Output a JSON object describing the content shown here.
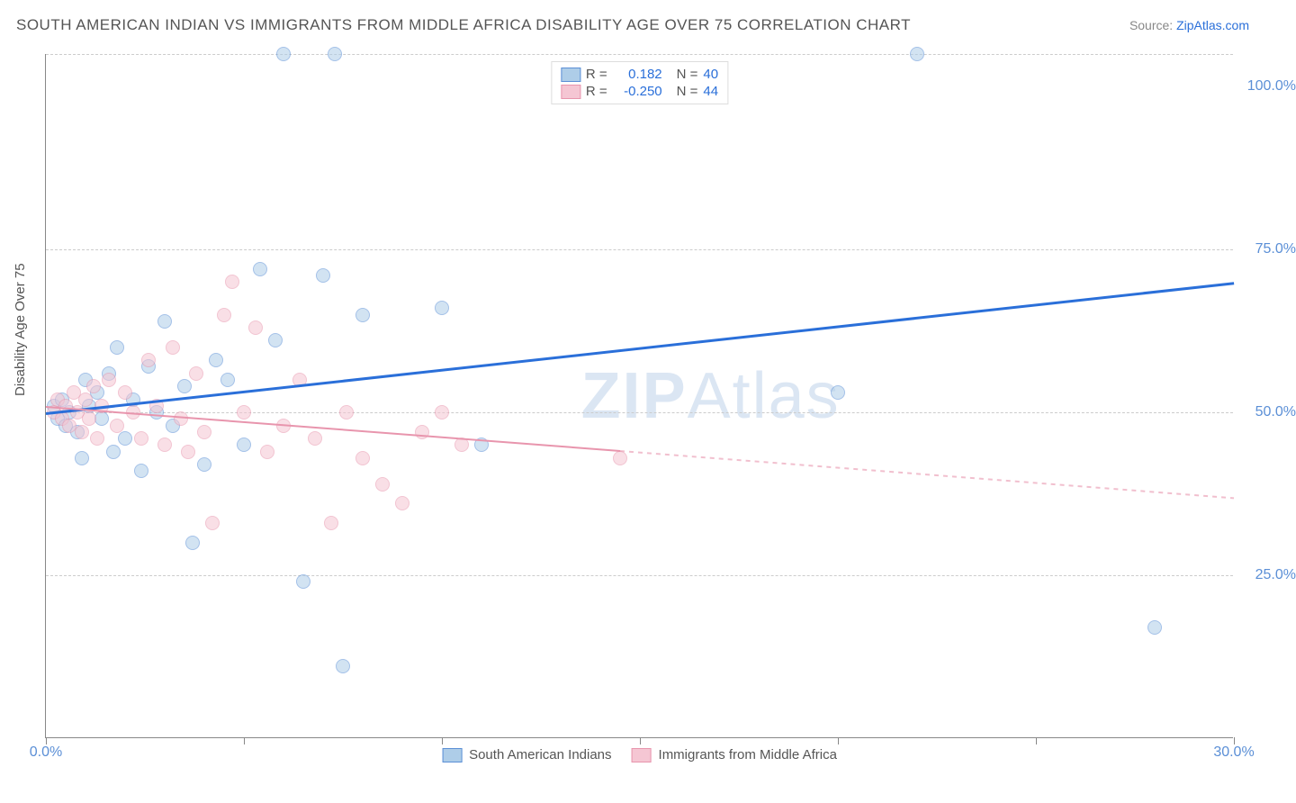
{
  "title": "SOUTH AMERICAN INDIAN VS IMMIGRANTS FROM MIDDLE AFRICA DISABILITY AGE OVER 75 CORRELATION CHART",
  "source_label": "Source:",
  "source_link": "ZipAtlas.com",
  "ylabel": "Disability Age Over 75",
  "watermark": "ZIPAtlas",
  "chart": {
    "type": "scatter",
    "xlim": [
      0,
      30
    ],
    "ylim": [
      0,
      105
    ],
    "x_ticks": [
      0,
      5,
      10,
      15,
      20,
      25,
      30
    ],
    "x_tick_labels": {
      "0": "0.0%",
      "30": "30.0%"
    },
    "y_gridlines": [
      25,
      50,
      75,
      105
    ],
    "y_tick_labels": {
      "25": "25.0%",
      "50": "50.0%",
      "75": "75.0%",
      "100": "100.0%"
    },
    "background_color": "#ffffff",
    "grid_color": "#cccccc",
    "axis_color": "#888888",
    "label_color": "#5b8fd6",
    "text_color": "#555555",
    "point_radius": 8,
    "point_opacity": 0.55,
    "series": [
      {
        "name": "South American Indians",
        "fill": "#aecde8",
        "stroke": "#5b8fd6",
        "r_value": "0.182",
        "n_value": "40",
        "trend": {
          "x1": 0,
          "y1": 50,
          "x2": 30,
          "y2": 70,
          "width": 3,
          "color": "#2a6fd9",
          "solid_until_x": 30
        },
        "points": [
          [
            0.2,
            51
          ],
          [
            0.3,
            49
          ],
          [
            0.4,
            52
          ],
          [
            0.5,
            48
          ],
          [
            0.6,
            50
          ],
          [
            0.8,
            47
          ],
          [
            0.9,
            43
          ],
          [
            1.0,
            55
          ],
          [
            1.1,
            51
          ],
          [
            1.3,
            53
          ],
          [
            1.4,
            49
          ],
          [
            1.6,
            56
          ],
          [
            1.7,
            44
          ],
          [
            1.8,
            60
          ],
          [
            2.0,
            46
          ],
          [
            2.2,
            52
          ],
          [
            2.4,
            41
          ],
          [
            2.6,
            57
          ],
          [
            2.8,
            50
          ],
          [
            3.0,
            64
          ],
          [
            3.2,
            48
          ],
          [
            3.5,
            54
          ],
          [
            3.7,
            30
          ],
          [
            4.0,
            42
          ],
          [
            4.3,
            58
          ],
          [
            4.6,
            55
          ],
          [
            5.0,
            45
          ],
          [
            5.4,
            72
          ],
          [
            5.8,
            61
          ],
          [
            6.0,
            105
          ],
          [
            6.5,
            24
          ],
          [
            7.0,
            71
          ],
          [
            7.3,
            105
          ],
          [
            7.5,
            11
          ],
          [
            8.0,
            65
          ],
          [
            10.0,
            66
          ],
          [
            11.0,
            45
          ],
          [
            22.0,
            105
          ],
          [
            28.0,
            17
          ],
          [
            20.0,
            53
          ]
        ]
      },
      {
        "name": "Immigrants from Middle Africa",
        "fill": "#f5c6d3",
        "stroke": "#e895ad",
        "r_value": "-0.250",
        "n_value": "44",
        "trend": {
          "x1": 0,
          "y1": 51,
          "x2": 30,
          "y2": 37,
          "width": 2,
          "color": "#e895ad",
          "solid_until_x": 14.5
        },
        "points": [
          [
            0.2,
            50
          ],
          [
            0.3,
            52
          ],
          [
            0.4,
            49
          ],
          [
            0.5,
            51
          ],
          [
            0.6,
            48
          ],
          [
            0.7,
            53
          ],
          [
            0.8,
            50
          ],
          [
            0.9,
            47
          ],
          [
            1.0,
            52
          ],
          [
            1.1,
            49
          ],
          [
            1.2,
            54
          ],
          [
            1.3,
            46
          ],
          [
            1.4,
            51
          ],
          [
            1.6,
            55
          ],
          [
            1.8,
            48
          ],
          [
            2.0,
            53
          ],
          [
            2.2,
            50
          ],
          [
            2.4,
            46
          ],
          [
            2.6,
            58
          ],
          [
            2.8,
            51
          ],
          [
            3.0,
            45
          ],
          [
            3.2,
            60
          ],
          [
            3.4,
            49
          ],
          [
            3.6,
            44
          ],
          [
            3.8,
            56
          ],
          [
            4.0,
            47
          ],
          [
            4.2,
            33
          ],
          [
            4.5,
            65
          ],
          [
            4.7,
            70
          ],
          [
            5.0,
            50
          ],
          [
            5.3,
            63
          ],
          [
            5.6,
            44
          ],
          [
            6.0,
            48
          ],
          [
            6.4,
            55
          ],
          [
            6.8,
            46
          ],
          [
            7.2,
            33
          ],
          [
            7.6,
            50
          ],
          [
            8.0,
            43
          ],
          [
            8.5,
            39
          ],
          [
            9.0,
            36
          ],
          [
            9.5,
            47
          ],
          [
            10.0,
            50
          ],
          [
            10.5,
            45
          ],
          [
            14.5,
            43
          ]
        ]
      }
    ]
  },
  "legend_top": {
    "r_label": "R =",
    "n_label": "N ="
  }
}
